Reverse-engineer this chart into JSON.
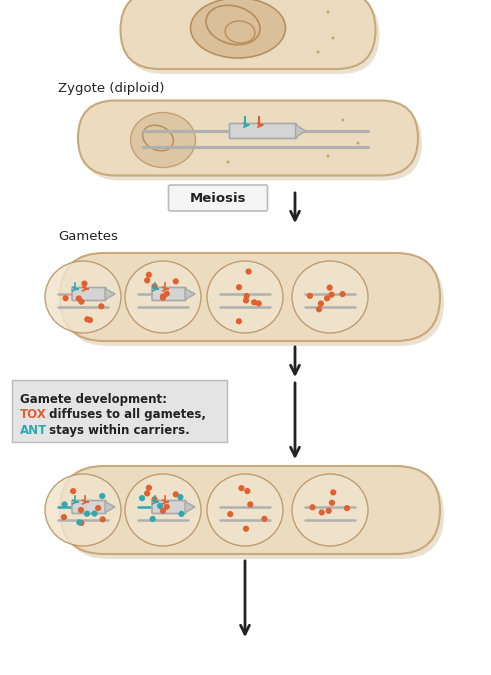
{
  "bg_color": "#ffffff",
  "cell_fill": "#ecdcbf",
  "cell_fill_light": "#f0e4cc",
  "cell_edge": "#c9a87a",
  "cell_shadow": "#d9c9ab",
  "nucleus_fill": "#d9bf9a",
  "nucleus_edge": "#b89060",
  "spot_color": "#c9a870",
  "chromosome_color": "#b0b0b0",
  "gene_box_fill": "#d4d4d4",
  "gene_box_edge": "#a8a8a8",
  "tox_color": "#e06030",
  "ant_color": "#30a8b0",
  "arrow_color": "#222222",
  "label_color": "#222222",
  "meiosis_box_fill": "#f5f5f5",
  "meiosis_box_edge": "#bbbbbb",
  "annotation_box_fill": "#e4e4e4",
  "annotation_box_edge": "#bbbbbb",
  "title1": "Zygote (diploid)",
  "title2": "Gametes",
  "meiosis_label": "Meiosis",
  "annotation_line1": "Gamete development:",
  "annotation_line2_prefix": "TOX",
  "annotation_line2_suffix": " diffuses to all gametes,",
  "annotation_line3_prefix": "ANT",
  "annotation_line3_suffix": " stays within carriers.",
  "tox_dot_color": "#e06030",
  "ant_dot_color": "#30a8b0",
  "fig_w": 4.91,
  "fig_h": 6.75,
  "dpi": 100
}
